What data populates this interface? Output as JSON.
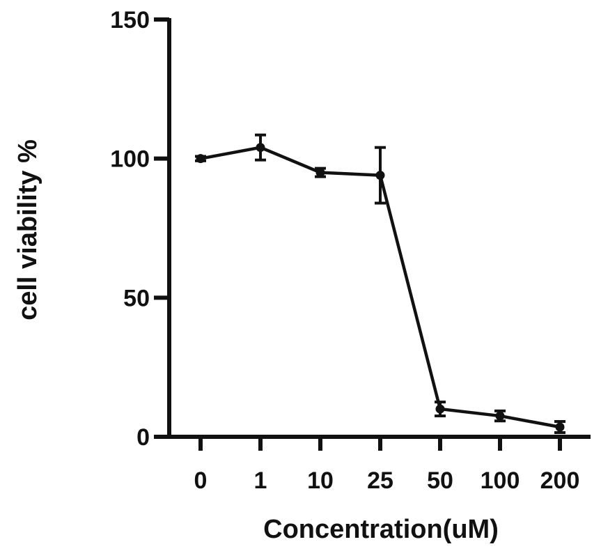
{
  "chart_data": {
    "type": "line",
    "title": "",
    "xlabel": "Concentration(uM)",
    "ylabel": "cell viability %",
    "x_scale": "categorical",
    "categories": [
      "0",
      "1",
      "10",
      "25",
      "50",
      "100",
      "200"
    ],
    "ylim": [
      0,
      150
    ],
    "yticks": [
      0,
      50,
      100,
      150
    ],
    "grid": false,
    "legend": "none",
    "series": [
      {
        "values": [
          100,
          104,
          95,
          94,
          10,
          7.5,
          3.5
        ],
        "errors": [
          0.8,
          4.5,
          1.5,
          10,
          2.5,
          1.8,
          2.0
        ],
        "color": "#111111",
        "marker": "circle"
      }
    ]
  }
}
